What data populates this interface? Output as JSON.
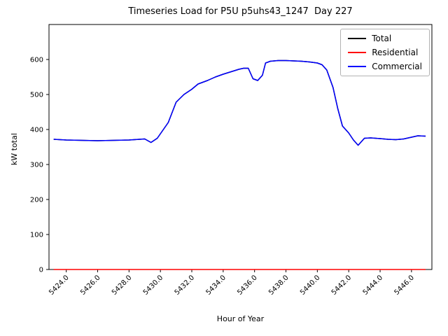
{
  "title": "Timeseries Load for P5U p5uhs43_1247  Day 227",
  "chart_data": {
    "type": "line",
    "title": "Timeseries Load for P5U p5uhs43_1247  Day 227",
    "xlabel": "Hour of Year",
    "ylabel": "kW total",
    "xlim": [
      5422.9,
      5447.3
    ],
    "ylim": [
      0,
      700
    ],
    "xticks": [
      5424,
      5426,
      5428,
      5430,
      5432,
      5434,
      5436,
      5438,
      5440,
      5442,
      5444,
      5446
    ],
    "xtick_label_suffix": ".0",
    "yticks": [
      0,
      100,
      200,
      300,
      400,
      500,
      600
    ],
    "grid": false,
    "legend_position": "upper right",
    "x": [
      5423.2,
      5424,
      5425,
      5426,
      5427,
      5428,
      5429,
      5429.4,
      5429.8,
      5430.5,
      5431,
      5431.5,
      5432,
      5432.4,
      5433,
      5433.5,
      5434,
      5434.5,
      5435,
      5435.3,
      5435.6,
      5435.9,
      5436.2,
      5436.5,
      5436.7,
      5437,
      5437.5,
      5438,
      5438.5,
      5439,
      5439.5,
      5440,
      5440.3,
      5440.6,
      5441,
      5441.3,
      5441.6,
      5442,
      5442.3,
      5442.6,
      5443,
      5443.4,
      5444,
      5444.5,
      5445,
      5445.5,
      5446,
      5446.4,
      5446.9
    ],
    "series": [
      {
        "name": "Total",
        "color": "#000000",
        "values": [
          372,
          370,
          369,
          368,
          369,
          370,
          373,
          363,
          375,
          420,
          478,
          500,
          515,
          530,
          540,
          550,
          558,
          565,
          572,
          575,
          575,
          545,
          540,
          555,
          590,
          595,
          597,
          597,
          596,
          595,
          593,
          590,
          585,
          570,
          520,
          460,
          410,
          390,
          370,
          355,
          375,
          376,
          374,
          372,
          371,
          373,
          378,
          382,
          381
        ]
      },
      {
        "name": "Residential",
        "color": "#ff0000",
        "values": [
          0,
          0,
          0,
          0,
          0,
          0,
          0,
          0,
          0,
          0,
          0,
          0,
          0,
          0,
          0,
          0,
          0,
          0,
          0,
          0,
          0,
          0,
          0,
          0,
          0,
          0,
          0,
          0,
          0,
          0,
          0,
          0,
          0,
          0,
          0,
          0,
          0,
          0,
          0,
          0,
          0,
          0,
          0,
          0,
          0,
          0,
          0,
          0,
          0
        ]
      },
      {
        "name": "Commercial",
        "color": "#0000ff",
        "values": [
          372,
          370,
          369,
          368,
          369,
          370,
          373,
          363,
          375,
          420,
          478,
          500,
          515,
          530,
          540,
          550,
          558,
          565,
          572,
          575,
          575,
          545,
          540,
          555,
          590,
          595,
          597,
          597,
          596,
          595,
          593,
          590,
          585,
          570,
          520,
          460,
          410,
          390,
          370,
          355,
          375,
          376,
          374,
          372,
          371,
          373,
          378,
          382,
          381
        ]
      }
    ]
  }
}
